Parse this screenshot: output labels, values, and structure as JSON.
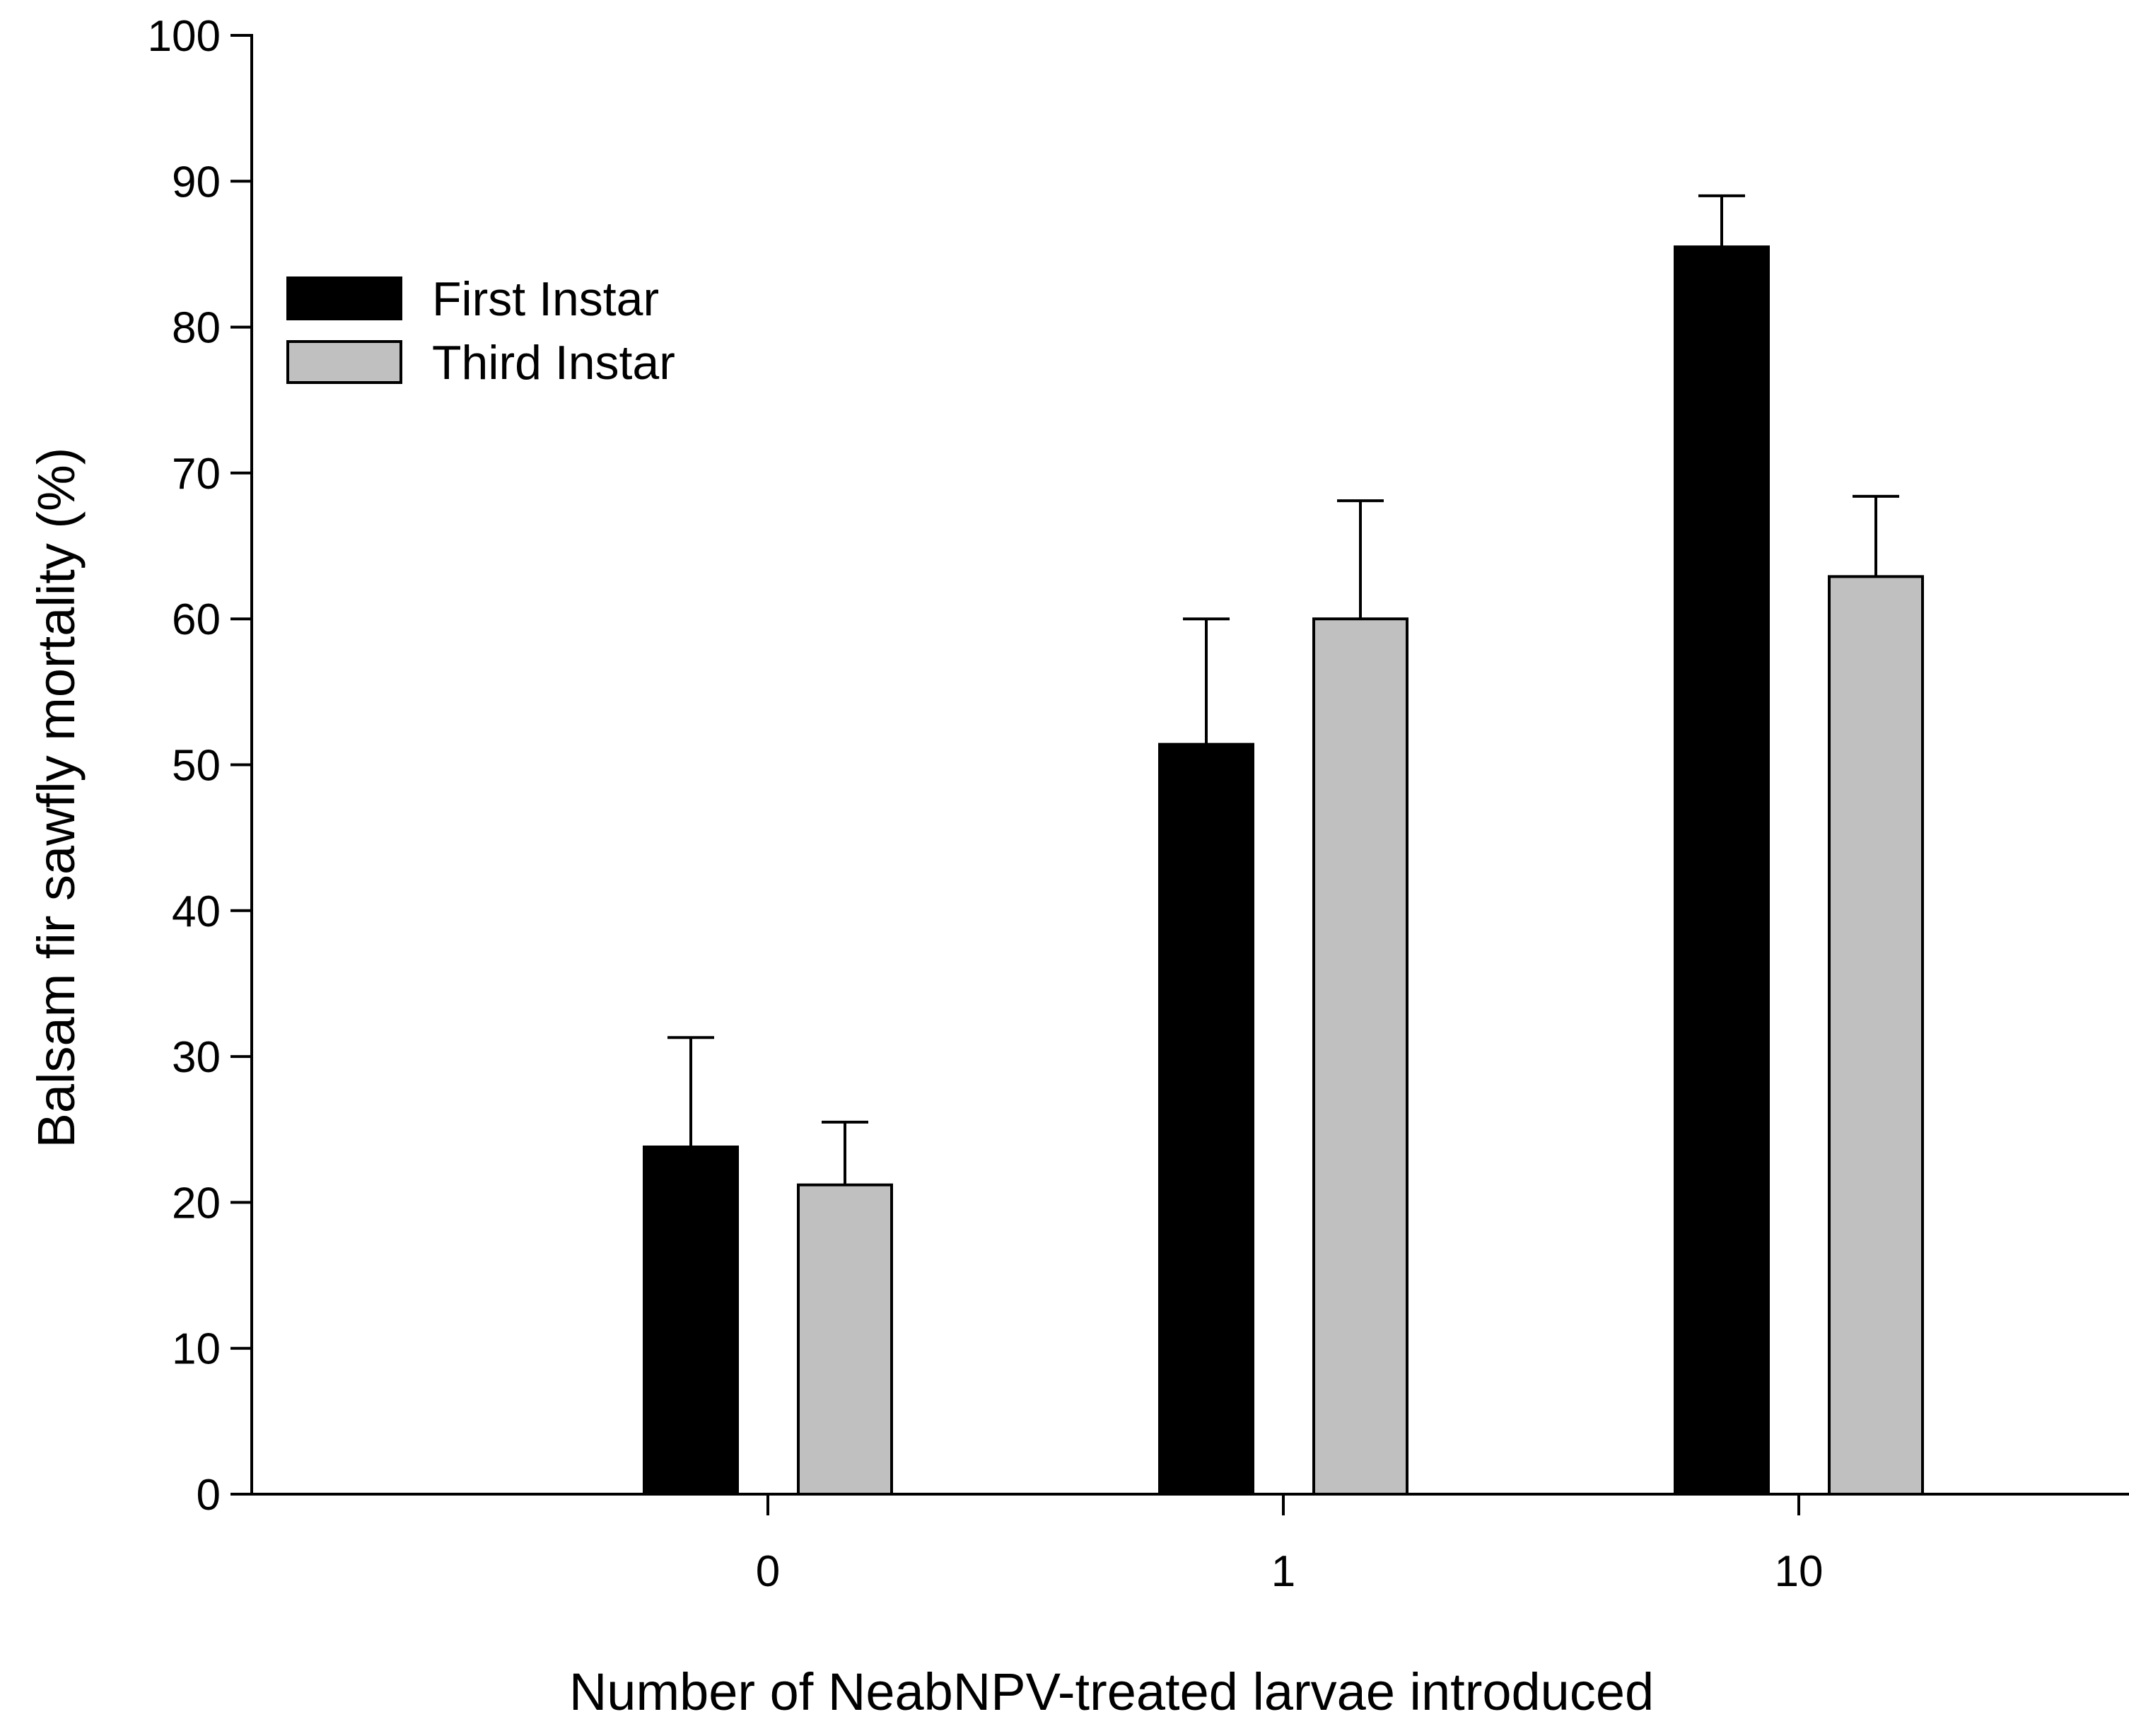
{
  "chart_data": {
    "type": "bar",
    "title": "",
    "xlabel": "Number of NeabNPV-treated larvae introduced",
    "ylabel": "Balsam fir sawfly mortality (%)",
    "categories": [
      "0",
      "1",
      "10"
    ],
    "ylim": [
      0,
      100
    ],
    "yticks": [
      0,
      10,
      20,
      30,
      40,
      50,
      60,
      70,
      80,
      90,
      100
    ],
    "grid": false,
    "legend_position": "top-left",
    "series": [
      {
        "name": "First Instar",
        "color": "#000000",
        "values": [
          23.8,
          51.4,
          85.5
        ],
        "errors": [
          7.5,
          8.6,
          3.5
        ]
      },
      {
        "name": "Third Instar",
        "color": "#c0c0c0",
        "values": [
          21.2,
          60.0,
          62.9
        ],
        "errors": [
          4.3,
          8.1,
          5.5
        ]
      }
    ]
  }
}
